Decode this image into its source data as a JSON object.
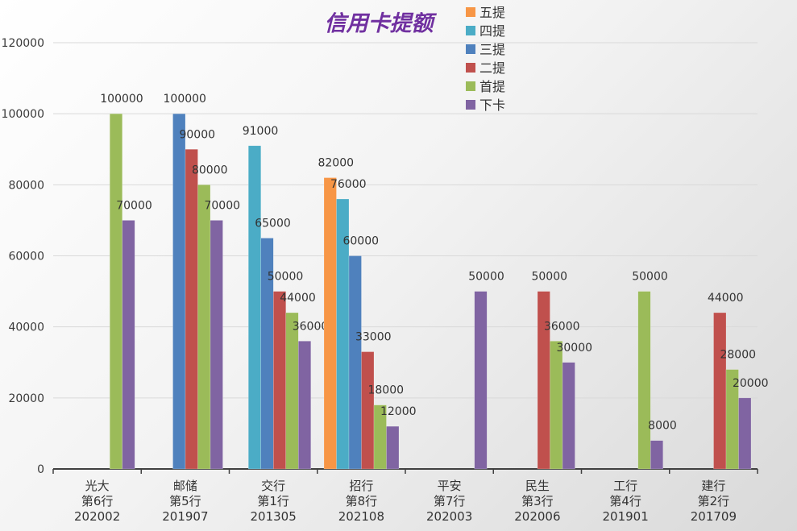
{
  "chart_data": {
    "type": "bar",
    "title": "信用卡提额",
    "categories": [
      [
        "光大",
        "第6行",
        "202002"
      ],
      [
        "邮储",
        "第5行",
        "201907"
      ],
      [
        "交行",
        "第1行",
        "201305"
      ],
      [
        "招行",
        "第8行",
        "202108"
      ],
      [
        "平安",
        "第7行",
        "202003"
      ],
      [
        "民生",
        "第3行",
        "202006"
      ],
      [
        "工行",
        "第4行",
        "201901"
      ],
      [
        "建行",
        "第2行",
        "201709"
      ]
    ],
    "series": [
      {
        "name": "五提",
        "color": "#f79646",
        "values": [
          null,
          null,
          null,
          82000,
          null,
          null,
          null,
          null
        ]
      },
      {
        "name": "四提",
        "color": "#4bacc6",
        "values": [
          null,
          null,
          91000,
          76000,
          null,
          null,
          null,
          null
        ]
      },
      {
        "name": "三提",
        "color": "#4f81bd",
        "values": [
          null,
          100000,
          65000,
          60000,
          null,
          null,
          null,
          null
        ]
      },
      {
        "name": "二提",
        "color": "#c0504d",
        "values": [
          null,
          90000,
          50000,
          33000,
          null,
          50000,
          null,
          44000
        ]
      },
      {
        "name": "首提",
        "color": "#9bbb59",
        "values": [
          100000,
          80000,
          44000,
          18000,
          null,
          36000,
          50000,
          28000
        ]
      },
      {
        "name": "下卡",
        "color": "#8064a2",
        "values": [
          70000,
          70000,
          36000,
          12000,
          50000,
          30000,
          8000,
          20000
        ]
      }
    ],
    "ylim": [
      0,
      120000
    ],
    "yticks": [
      0,
      20000,
      40000,
      60000,
      80000,
      100000,
      120000
    ],
    "xlabel": "",
    "ylabel": "",
    "grid": true,
    "legend": "top-center"
  }
}
